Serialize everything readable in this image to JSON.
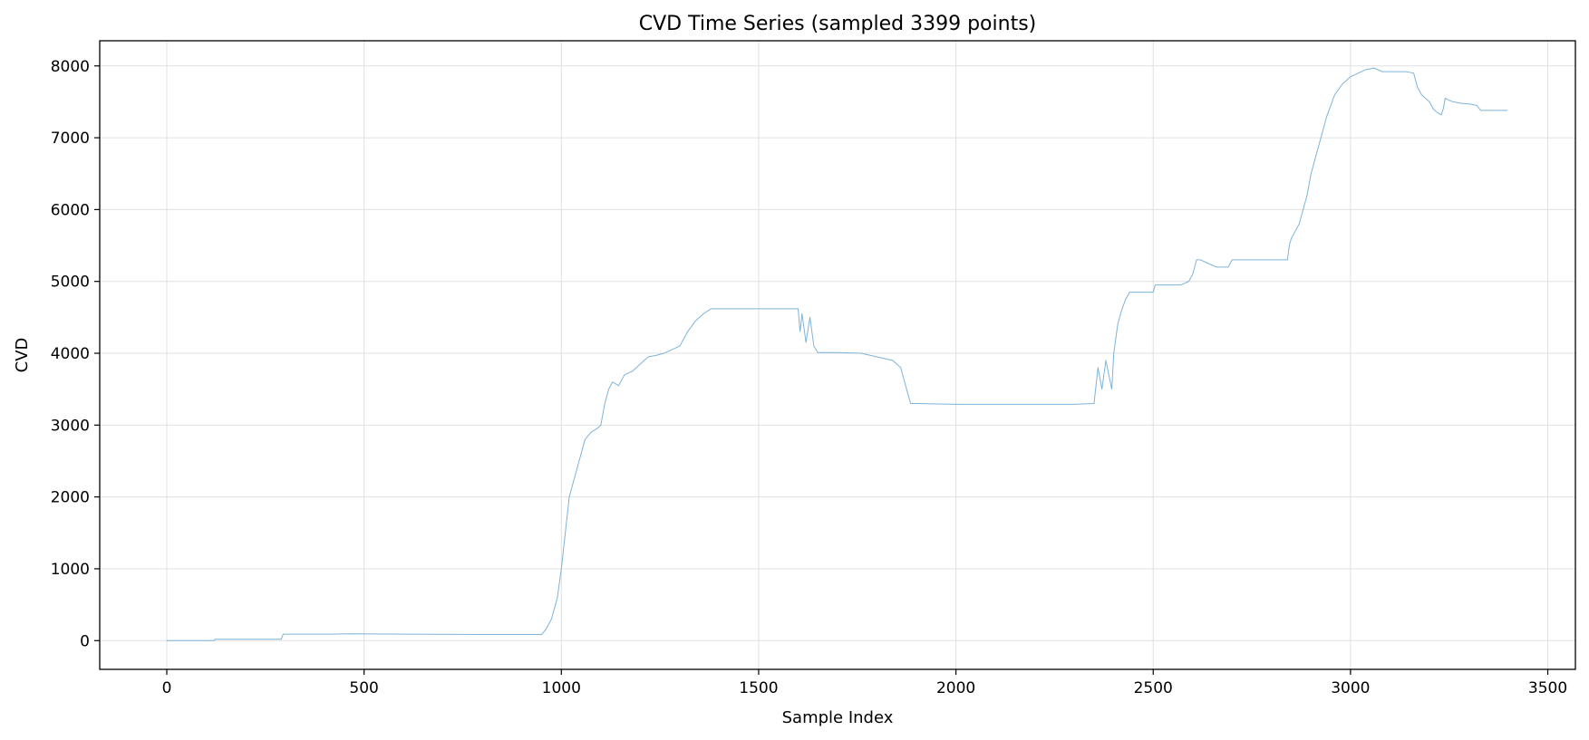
{
  "chart_data": {
    "type": "line",
    "title": "CVD Time Series (sampled 3399 points)",
    "xlabel": "Sample Index",
    "ylabel": "CVD",
    "xlim": [
      -170,
      3570
    ],
    "ylim": [
      -400,
      8350
    ],
    "xticks": [
      0,
      500,
      1000,
      1500,
      2000,
      2500,
      3000,
      3500
    ],
    "yticks": [
      0,
      1000,
      2000,
      3000,
      4000,
      5000,
      6000,
      7000,
      8000
    ],
    "grid": true,
    "line_color": "#7eb3d8",
    "series": [
      {
        "x": [
          0,
          120,
          122,
          290,
          295,
          420,
          460,
          600,
          800,
          950,
          960,
          975,
          990,
          1000,
          1010,
          1020,
          1030,
          1045,
          1060,
          1075,
          1090,
          1100,
          1110,
          1120,
          1130,
          1145,
          1160,
          1180,
          1200,
          1220,
          1240,
          1260,
          1280,
          1300,
          1320,
          1340,
          1360,
          1380,
          1400,
          1420,
          1600,
          1605,
          1610,
          1620,
          1630,
          1640,
          1650,
          1700,
          1760,
          1800,
          1840,
          1860,
          1870,
          1880,
          1885,
          1900,
          2000,
          2100,
          2200,
          2300,
          2350,
          2360,
          2370,
          2380,
          2395,
          2400,
          2405,
          2410,
          2420,
          2430,
          2440,
          2500,
          2505,
          2570,
          2590,
          2600,
          2610,
          2620,
          2640,
          2660,
          2690,
          2700,
          2720,
          2760,
          2800,
          2840,
          2845,
          2850,
          2860,
          2870,
          2880,
          2890,
          2900,
          2910,
          2920,
          2930,
          2940,
          2960,
          2980,
          3000,
          3020,
          3040,
          3060,
          3080,
          3100,
          3120,
          3140,
          3160,
          3170,
          3180,
          3200,
          3210,
          3220,
          3230,
          3235,
          3240,
          3250,
          3260,
          3280,
          3300,
          3320,
          3330,
          3398
        ],
        "y": [
          0,
          0,
          20,
          20,
          90,
          90,
          95,
          90,
          85,
          85,
          150,
          300,
          600,
          1000,
          1500,
          2000,
          2200,
          2500,
          2800,
          2900,
          2950,
          3000,
          3300,
          3500,
          3600,
          3550,
          3700,
          3750,
          3850,
          3950,
          3970,
          4000,
          4050,
          4100,
          4300,
          4450,
          4550,
          4620,
          4620,
          4620,
          4620,
          4300,
          4550,
          4150,
          4500,
          4100,
          4010,
          4010,
          4000,
          3950,
          3900,
          3800,
          3600,
          3400,
          3300,
          3300,
          3290,
          3290,
          3290,
          3290,
          3300,
          3800,
          3500,
          3900,
          3500,
          4000,
          4200,
          4400,
          4600,
          4750,
          4850,
          4850,
          4950,
          4950,
          5000,
          5100,
          5300,
          5300,
          5250,
          5200,
          5200,
          5300,
          5300,
          5300,
          5300,
          5300,
          5500,
          5600,
          5700,
          5800,
          6000,
          6200,
          6500,
          6700,
          6900,
          7100,
          7300,
          7600,
          7750,
          7850,
          7900,
          7950,
          7970,
          7920,
          7920,
          7920,
          7920,
          7900,
          7700,
          7600,
          7500,
          7400,
          7350,
          7320,
          7400,
          7550,
          7520,
          7500,
          7480,
          7470,
          7450,
          7380,
          7380
        ]
      }
    ]
  }
}
